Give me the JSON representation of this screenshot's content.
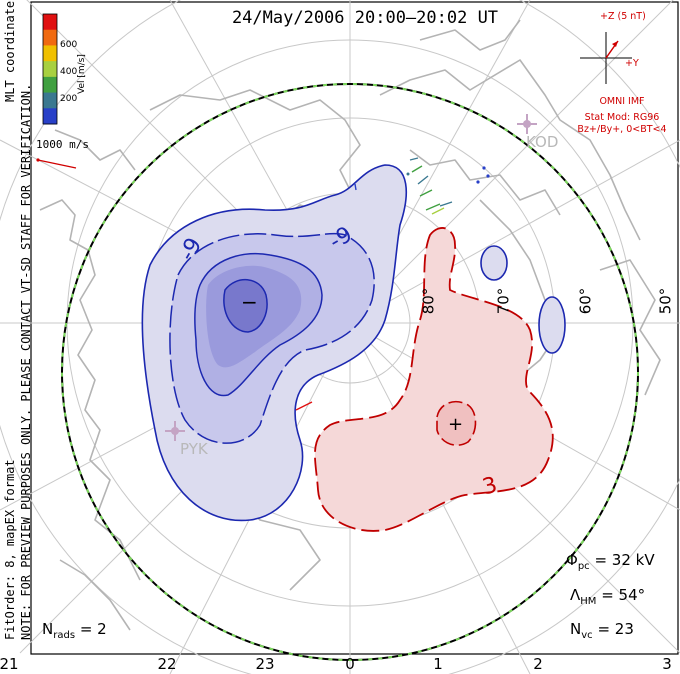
{
  "title": "24/May/2006 20:00–20:02 UT",
  "side_note": "NOTE: FOR PREVIEW PURPOSES ONLY. PLEASE CONTACT VT-SD STAFF FOR VERIFICATION.",
  "fit_info": "FitOrder: 8, mapEX format",
  "coord_label": "MLT coordinates",
  "colorbar": {
    "label": "Vel [m/s]",
    "ticks": [
      "600",
      "400",
      "200"
    ],
    "colors": [
      "#e01010",
      "#f06a10",
      "#f0c000",
      "#a8d040",
      "#40a040",
      "#3a7890",
      "#2840c8"
    ]
  },
  "scale_label": "1000 m/s",
  "imf": {
    "label": "+Z (5 nT)",
    "y_label": "+Y",
    "source": "OMNI IMF",
    "model": "Stat Mod: RG96",
    "condition": "Bz+/By+, 0<BT<4"
  },
  "stations": {
    "pyk": "PYK",
    "kod": "KOD"
  },
  "lat_labels": [
    "80°",
    "70°",
    "60°",
    "50°"
  ],
  "contour_labels": {
    "neg": "-9",
    "neg2": "-9",
    "pos": "3"
  },
  "markers": {
    "minus": "−",
    "plus": "+"
  },
  "stats": {
    "phi_symbol": "Φ",
    "phi_sub": "pc",
    "phi_value": "= 32 kV",
    "lambda_symbol": "Λ",
    "lambda_sub": "HM",
    "lambda_value": "= 54°",
    "nvc_symbol": "N",
    "nvc_sub": "vc",
    "nvc_value": "= 23",
    "nrads_symbol": "N",
    "nrads_sub": "rads",
    "nrads_value": "= 2"
  },
  "mlt_ticks": [
    "21",
    "22",
    "23",
    "0",
    "1",
    "2",
    "3"
  ]
}
